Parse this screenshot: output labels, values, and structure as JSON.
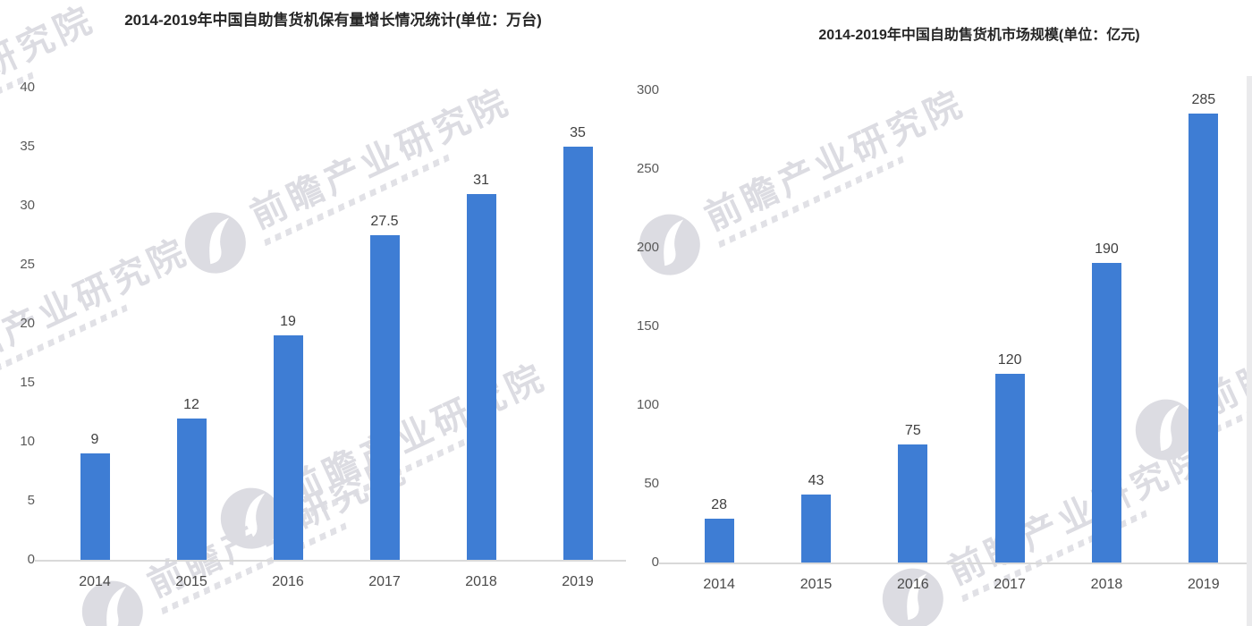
{
  "page": {
    "background": "#ffffff"
  },
  "watermark": {
    "text": "前瞻产业研究院"
  },
  "colors": {
    "bar": "#3e7dd4",
    "axis_line": "#d9d9d9",
    "tick_text": "#595959",
    "value_text": "#3f3f3f",
    "xlabel_text": "#4a4a4a",
    "title_text": "#262626",
    "watermark": "#dcdce2"
  },
  "chart_data": [
    {
      "type": "bar",
      "title": "2014-2019年中国自助售货机保有量增长情况统计(单位：万台)",
      "unit": "万台",
      "categories": [
        "2014",
        "2015",
        "2016",
        "2017",
        "2018",
        "2019"
      ],
      "values": [
        9,
        12,
        19,
        27.5,
        31,
        35
      ],
      "value_labels": [
        "9",
        "12",
        "19",
        "27.5",
        "31",
        "35"
      ],
      "xlabel": "",
      "ylabel": "",
      "ylim": [
        0,
        40
      ],
      "yticks": [
        0,
        5,
        10,
        15,
        20,
        25,
        30,
        35,
        40
      ],
      "grid": false,
      "legend": false
    },
    {
      "type": "bar",
      "title": "2014-2019年中国自助售货机市场规模(单位：亿元)",
      "unit": "亿元",
      "categories": [
        "2014",
        "2015",
        "2016",
        "2017",
        "2018",
        "2019"
      ],
      "values": [
        28,
        43,
        75,
        120,
        190,
        285
      ],
      "value_labels": [
        "28",
        "43",
        "75",
        "120",
        "190",
        "285"
      ],
      "xlabel": "",
      "ylabel": "",
      "ylim": [
        0,
        300
      ],
      "yticks": [
        0,
        50,
        100,
        150,
        200,
        250,
        300
      ],
      "grid": false,
      "legend": false
    }
  ]
}
